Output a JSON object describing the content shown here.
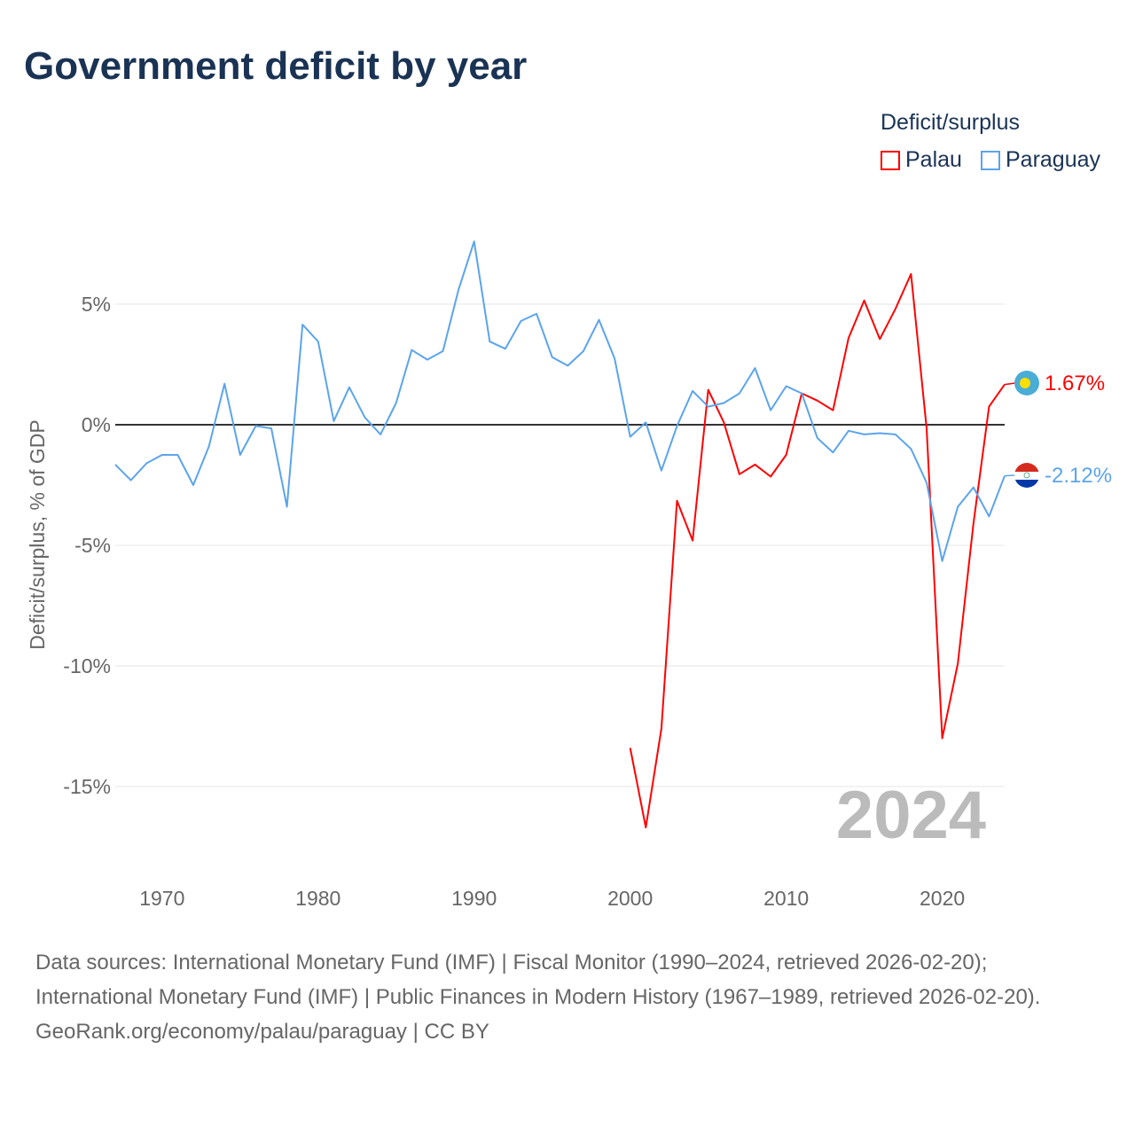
{
  "title": "Government deficit by year",
  "legend": {
    "title": "Deficit/surplus",
    "items": [
      {
        "label": "Palau",
        "color": "#ff0000"
      },
      {
        "label": "Paraguay",
        "color": "#5ba4ec"
      }
    ]
  },
  "year_label": "2024",
  "footer": {
    "sources": "Data sources: International Monetary Fund (IMF) | Fiscal Monitor (1990–2024, retrieved 2026-02-20); International Monetary Fund (IMF) | Public Finances in Modern History (1967–1989, retrieved 2026-02-20).",
    "credit": "GeoRank.org/economy/palau/paraguay | CC BY"
  },
  "chart_data": {
    "type": "line",
    "title": "Government deficit by year",
    "xlabel": "",
    "ylabel": "Deficit/surplus, % of GDP",
    "xlim": [
      1967,
      2024
    ],
    "ylim": [
      -18.5,
      9
    ],
    "xticks": [
      1970,
      1980,
      1990,
      2000,
      2010,
      2020
    ],
    "xtick_labels": [
      "1970",
      "1980",
      "1990",
      "2000",
      "2010",
      "2020"
    ],
    "yticks": [
      5,
      0,
      -5,
      -10,
      -15
    ],
    "ytick_labels": [
      "5%",
      "0%",
      "-5%",
      "-10%",
      "-15%"
    ],
    "grid": true,
    "legend_position": "top-right",
    "series": [
      {
        "name": "Palau",
        "color": "#ff0000",
        "end_label": "1.67%",
        "x": [
          2000,
          2001,
          2002,
          2003,
          2004,
          2005,
          2006,
          2007,
          2008,
          2009,
          2010,
          2011,
          2012,
          2013,
          2014,
          2015,
          2016,
          2017,
          2018,
          2019,
          2020,
          2021,
          2022,
          2023,
          2024
        ],
        "values": [
          -13.4,
          -16.7,
          -12.6,
          -3.15,
          -4.8,
          1.45,
          0.1,
          -2.05,
          -1.65,
          -2.15,
          -1.25,
          1.3,
          1.0,
          0.6,
          3.6,
          5.15,
          3.55,
          4.8,
          6.25,
          -0.15,
          -13.0,
          -9.9,
          -4.1,
          0.75,
          1.67
        ]
      },
      {
        "name": "Paraguay",
        "color": "#5ba4ec",
        "end_label": "-2.12%",
        "x": [
          1967,
          1968,
          1969,
          1970,
          1971,
          1972,
          1973,
          1974,
          1975,
          1976,
          1977,
          1978,
          1979,
          1980,
          1981,
          1982,
          1983,
          1984,
          1985,
          1986,
          1987,
          1988,
          1989,
          1990,
          1991,
          1992,
          1993,
          1994,
          1995,
          1996,
          1997,
          1998,
          1999,
          2000,
          2001,
          2002,
          2003,
          2004,
          2005,
          2006,
          2007,
          2008,
          2009,
          2010,
          2011,
          2012,
          2013,
          2014,
          2015,
          2016,
          2017,
          2018,
          2019,
          2020,
          2021,
          2022,
          2023,
          2024
        ],
        "values": [
          -1.65,
          -2.3,
          -1.6,
          -1.25,
          -1.25,
          -2.5,
          -0.9,
          1.7,
          -1.25,
          -0.05,
          -0.15,
          -3.4,
          4.15,
          3.45,
          0.15,
          1.55,
          0.3,
          -0.4,
          0.9,
          3.1,
          2.7,
          3.05,
          5.6,
          7.6,
          3.45,
          3.15,
          4.3,
          4.6,
          2.8,
          2.45,
          3.05,
          4.35,
          2.75,
          -0.5,
          0.1,
          -1.9,
          -0.05,
          1.4,
          0.75,
          0.9,
          1.3,
          2.35,
          0.6,
          1.6,
          1.3,
          -0.55,
          -1.15,
          -0.25,
          -0.4,
          -0.35,
          -0.4,
          -1.0,
          -2.4,
          -5.65,
          -3.4,
          -2.6,
          -3.8,
          -2.12
        ]
      }
    ]
  }
}
